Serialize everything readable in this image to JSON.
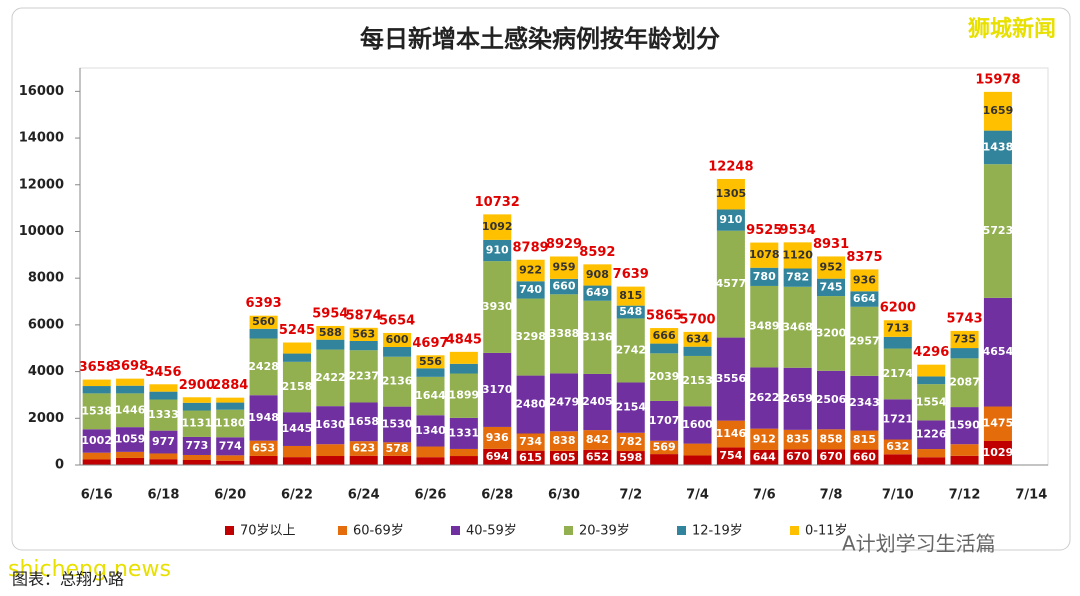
{
  "chart_data": {
    "type": "stacked_bar",
    "title": "每日新增本土感染病例按年龄划分",
    "categories": [
      "6/16",
      null,
      "6/18",
      null,
      "6/20",
      null,
      "6/22",
      null,
      "6/24",
      null,
      "6/26",
      null,
      "6/28",
      null,
      "6/30",
      null,
      "7/2",
      null,
      "7/4",
      null,
      "7/6",
      null,
      "7/8",
      null,
      "7/10",
      null,
      "7/12",
      null,
      "7/14"
    ],
    "series": [
      {
        "name": "70岁以上",
        "color": "#c00000",
        "values": [
          237,
          302,
          250,
          214,
          184,
          388,
          337,
          385,
          396,
          392,
          335,
          384,
          694,
          615,
          605,
          652,
          598,
          467,
          406,
          754,
          644,
          670,
          670,
          660,
          459,
          333,
          394,
          1029,
          null
        ]
      },
      {
        "name": "60-69岁",
        "color": "#e46c0a",
        "values": [
          290,
          260,
          244,
          215,
          230,
          653,
          478,
          505,
          623,
          578,
          456,
          303,
          936,
          734,
          838,
          842,
          782,
          569,
          510,
          1146,
          912,
          835,
          858,
          815,
          632,
          350,
          496,
          1475,
          null
        ]
      },
      {
        "name": "40-59岁",
        "color": "#7030a0",
        "values": [
          1002,
          1059,
          977,
          773,
          774,
          1948,
          1445,
          1630,
          1658,
          1530,
          1340,
          1331,
          3170,
          2480,
          2479,
          2405,
          2154,
          1707,
          1600,
          3556,
          2622,
          2659,
          2506,
          2343,
          1721,
          1226,
          1590,
          4654,
          null
        ]
      },
      {
        "name": "20-39岁",
        "color": "#92b050",
        "values": [
          1538,
          1446,
          1333,
          1131,
          1180,
          2428,
          2158,
          2422,
          2237,
          2136,
          1644,
          1899,
          3930,
          3298,
          3388,
          3136,
          2742,
          2039,
          2153,
          4577,
          3489,
          3468,
          3200,
          2957,
          2174,
          1554,
          2087,
          5723,
          null
        ]
      },
      {
        "name": "12-19岁",
        "color": "#31849b",
        "values": [
          314,
          328,
          337,
          331,
          305,
          416,
          354,
          424,
          397,
          418,
          366,
          416,
          910,
          740,
          660,
          649,
          548,
          417,
          397,
          910,
          780,
          782,
          745,
          664,
          501,
          330,
          441,
          1438,
          null
        ]
      },
      {
        "name": "0-11岁",
        "color": "#ffc000",
        "values": [
          277,
          303,
          315,
          236,
          211,
          560,
          473,
          588,
          563,
          600,
          556,
          512,
          1092,
          922,
          959,
          908,
          815,
          666,
          634,
          1305,
          1078,
          1120,
          952,
          936,
          713,
          503,
          735,
          1659,
          null
        ]
      }
    ],
    "totals": [
      3658,
      3698,
      3456,
      2900,
      2884,
      6393,
      5245,
      5954,
      5874,
      5654,
      4697,
      4845,
      10732,
      8789,
      8929,
      8592,
      7639,
      5865,
      5700,
      12248,
      9525,
      9534,
      8931,
      8375,
      6200,
      4296,
      5743,
      15978,
      null
    ],
    "ylim": [
      0,
      17000
    ],
    "yticks": [
      0,
      2000,
      4000,
      6000,
      8000,
      10000,
      12000,
      14000,
      16000
    ],
    "grid": false
  },
  "watermarks": [
    "狮城新闻",
    "shicheng.news",
    "A计划学习生活篇"
  ],
  "source": "图表：总翔小路"
}
